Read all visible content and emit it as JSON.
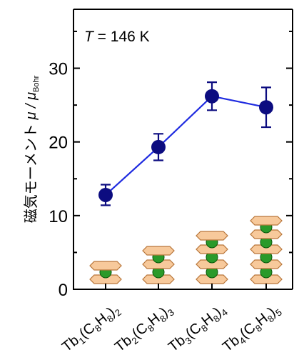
{
  "chart_data": {
    "type": "scatter",
    "annotation": {
      "italic": "T",
      "text": "= 146 K"
    },
    "y_label": {
      "main": "磁気モーメント",
      "unit": "μ / μ",
      "unit_sub": "Bohr"
    },
    "categories": [
      "Tb1(C8H8)2",
      "Tb2(C8H8)3",
      "Tb3(C8H8)4",
      "Tb4(C8H8)5"
    ],
    "series": [
      {
        "color": "#0c0c80",
        "line_color": "#1f2be0",
        "values": [
          12.8,
          19.3,
          26.2,
          24.7
        ],
        "errors": [
          1.4,
          1.8,
          1.9,
          2.7
        ]
      }
    ],
    "ylim": [
      0,
      38
    ],
    "yticks": [
      0,
      10,
      20,
      30
    ],
    "yminorticks": [
      5,
      15,
      25,
      35
    ],
    "grid": false
  }
}
